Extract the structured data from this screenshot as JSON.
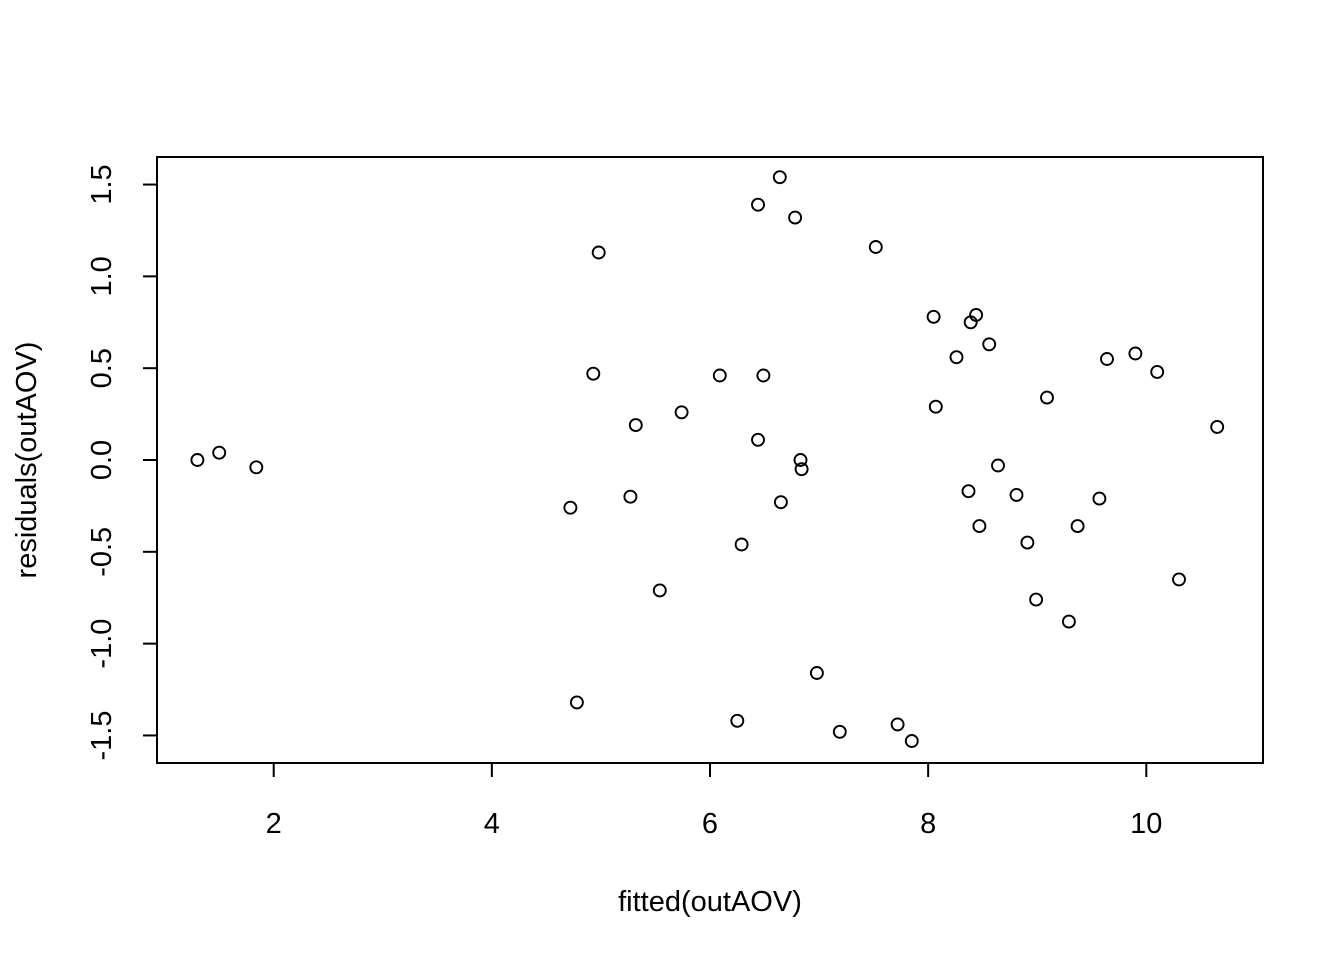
{
  "chart_data": {
    "type": "scatter",
    "title": "",
    "xlabel": "fitted(outAOV)",
    "ylabel": "residuals(outAOV)",
    "xlim": [
      0.93,
      11.07
    ],
    "ylim": [
      -1.65,
      1.65
    ],
    "x_ticks": [
      2,
      4,
      6,
      8,
      10
    ],
    "x_tick_labels": [
      "2",
      "4",
      "6",
      "8",
      "10"
    ],
    "y_ticks": [
      -1.5,
      -1.0,
      -0.5,
      0.0,
      0.5,
      1.0,
      1.5
    ],
    "y_tick_labels": [
      "-1.5",
      "-1.0",
      "-0.5",
      "0.0",
      "0.5",
      "1.0",
      "1.5"
    ],
    "grid": false,
    "legend": "none",
    "marker": "open-circle",
    "color": "#000000",
    "points": [
      {
        "x": 1.3,
        "y": 0.0
      },
      {
        "x": 1.5,
        "y": 0.04
      },
      {
        "x": 1.84,
        "y": -0.04
      },
      {
        "x": 4.72,
        "y": -0.26
      },
      {
        "x": 4.78,
        "y": -1.32
      },
      {
        "x": 4.93,
        "y": 0.47
      },
      {
        "x": 4.98,
        "y": 1.13
      },
      {
        "x": 5.27,
        "y": -0.2
      },
      {
        "x": 5.32,
        "y": 0.19
      },
      {
        "x": 5.54,
        "y": -0.71
      },
      {
        "x": 5.74,
        "y": 0.26
      },
      {
        "x": 6.09,
        "y": 0.46
      },
      {
        "x": 6.25,
        "y": -1.42
      },
      {
        "x": 6.29,
        "y": -0.46
      },
      {
        "x": 6.44,
        "y": 1.39
      },
      {
        "x": 6.44,
        "y": 0.11
      },
      {
        "x": 6.49,
        "y": 0.46
      },
      {
        "x": 6.64,
        "y": 1.54
      },
      {
        "x": 6.65,
        "y": -0.23
      },
      {
        "x": 6.78,
        "y": 1.32
      },
      {
        "x": 6.83,
        "y": 0.0
      },
      {
        "x": 6.84,
        "y": -0.05
      },
      {
        "x": 6.98,
        "y": -1.16
      },
      {
        "x": 7.19,
        "y": -1.48
      },
      {
        "x": 7.52,
        "y": 1.16
      },
      {
        "x": 7.72,
        "y": -1.44
      },
      {
        "x": 7.85,
        "y": -1.53
      },
      {
        "x": 8.05,
        "y": 0.78
      },
      {
        "x": 8.07,
        "y": 0.29
      },
      {
        "x": 8.26,
        "y": 0.56
      },
      {
        "x": 8.37,
        "y": -0.17
      },
      {
        "x": 8.39,
        "y": 0.75
      },
      {
        "x": 8.44,
        "y": 0.79
      },
      {
        "x": 8.47,
        "y": -0.36
      },
      {
        "x": 8.56,
        "y": 0.63
      },
      {
        "x": 8.64,
        "y": -0.03
      },
      {
        "x": 8.81,
        "y": -0.19
      },
      {
        "x": 8.91,
        "y": -0.45
      },
      {
        "x": 8.99,
        "y": -0.76
      },
      {
        "x": 9.09,
        "y": 0.34
      },
      {
        "x": 9.29,
        "y": -0.88
      },
      {
        "x": 9.37,
        "y": -0.36
      },
      {
        "x": 9.57,
        "y": -0.21
      },
      {
        "x": 9.64,
        "y": 0.55
      },
      {
        "x": 9.9,
        "y": 0.58
      },
      {
        "x": 10.1,
        "y": 0.48
      },
      {
        "x": 10.3,
        "y": -0.65
      },
      {
        "x": 10.65,
        "y": 0.18
      }
    ]
  }
}
